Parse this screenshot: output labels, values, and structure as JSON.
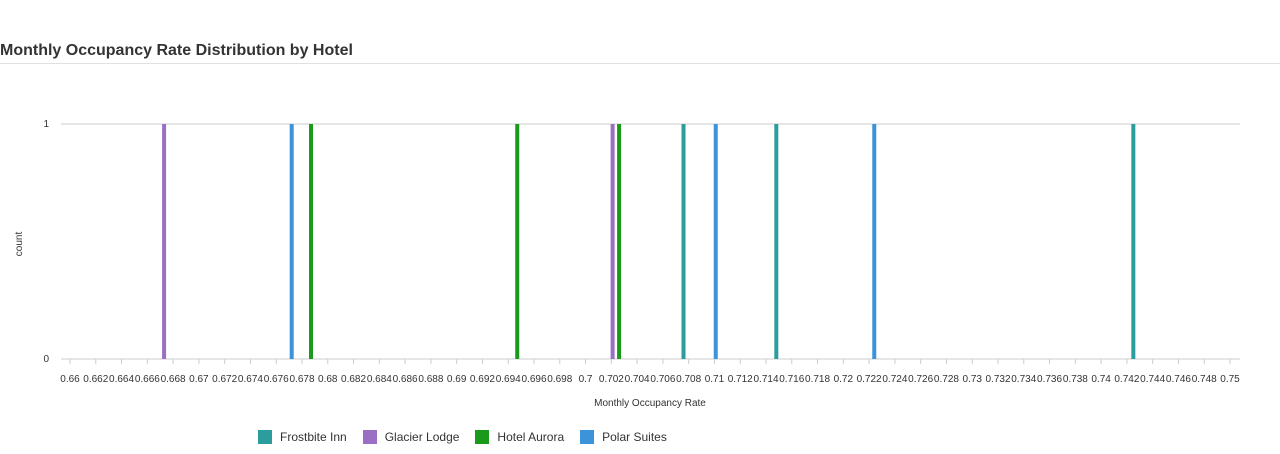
{
  "chart_data": {
    "type": "histogram",
    "title": "Monthly Occupancy Rate Distribution by Hotel",
    "xlabel": "Monthly Occupancy Rate",
    "ylabel": "count",
    "xlim": [
      0.659,
      0.75
    ],
    "ylim": [
      0,
      1
    ],
    "x_ticks": [
      "0.66",
      "0.662",
      "0.664",
      "0.666",
      "0.668",
      "0.67",
      "0.672",
      "0.674",
      "0.676",
      "0.678",
      "0.68",
      "0.682",
      "0.684",
      "0.686",
      "0.688",
      "0.69",
      "0.692",
      "0.694",
      "0.696",
      "0.698",
      "0.7",
      "0.702",
      "0.704",
      "0.706",
      "0.708",
      "0.71",
      "0.712",
      "0.714",
      "0.716",
      "0.718",
      "0.72",
      "0.722",
      "0.724",
      "0.726",
      "0.728",
      "0.73",
      "0.732",
      "0.734",
      "0.736",
      "0.738",
      "0.74",
      "0.742",
      "0.744",
      "0.746",
      "0.748",
      "0.75"
    ],
    "y_ticks": [
      "0",
      "1"
    ],
    "legend_position": "bottom",
    "series": [
      {
        "name": "Frostbite Inn",
        "color": "#2a9d9c",
        "values": [
          0.7076,
          0.7148,
          0.7425
        ]
      },
      {
        "name": "Glacier Lodge",
        "color": "#9a6fc4",
        "values": [
          0.6673,
          0.7021
        ]
      },
      {
        "name": "Hotel Aurora",
        "color": "#1a9a1a",
        "values": [
          0.6787,
          0.6947,
          0.7026
        ]
      },
      {
        "name": "Polar Suites",
        "color": "#3b94d9",
        "values": [
          0.6772,
          0.7101,
          0.7224
        ]
      }
    ]
  }
}
